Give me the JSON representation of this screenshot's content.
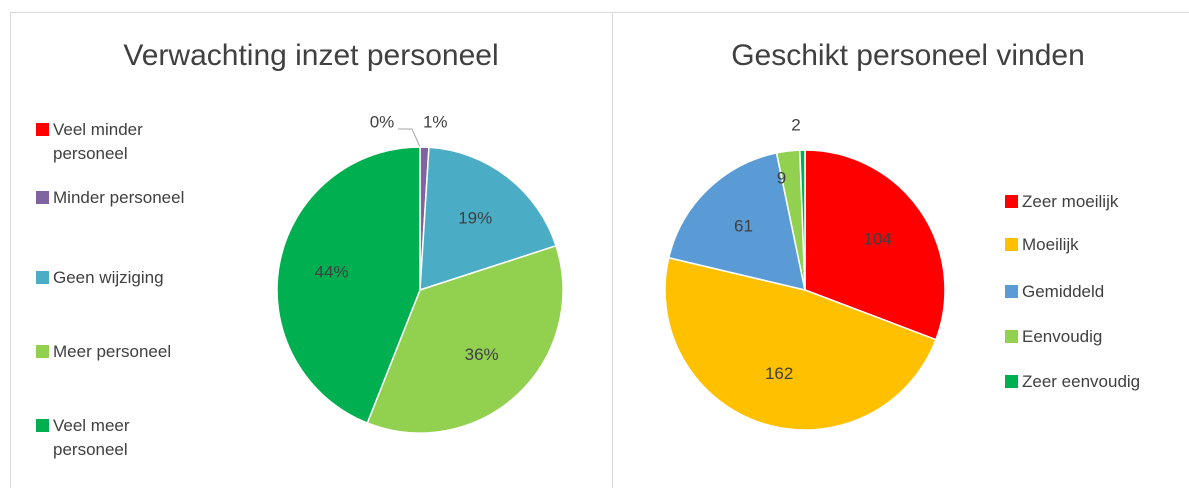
{
  "chart_data": [
    {
      "type": "pie",
      "title": "Verwachting inzet personeel",
      "categories": [
        "Veel minder personeel",
        "Minder personeel",
        "Geen wijziging",
        "Meer personeel",
        "Veel meer personeel"
      ],
      "values": [
        0,
        1,
        19,
        36,
        44
      ],
      "value_labels": [
        "0%",
        "1%",
        "19%",
        "36%",
        "44%"
      ],
      "colors": [
        "#ff0000",
        "#8064a2",
        "#4bacc6",
        "#92d050",
        "#00b050"
      ],
      "legend": "left"
    },
    {
      "type": "pie",
      "title": "Geschikt personeel vinden",
      "categories": [
        "Zeer moeilijk",
        "Moeilijk",
        "Gemiddeld",
        "Eenvoudig",
        "Zeer eenvoudig"
      ],
      "values": [
        104,
        162,
        61,
        9,
        2
      ],
      "colors": [
        "#ff0000",
        "#ffc000",
        "#5b9bd5",
        "#92d050",
        "#00b050"
      ],
      "legend": "right"
    }
  ]
}
